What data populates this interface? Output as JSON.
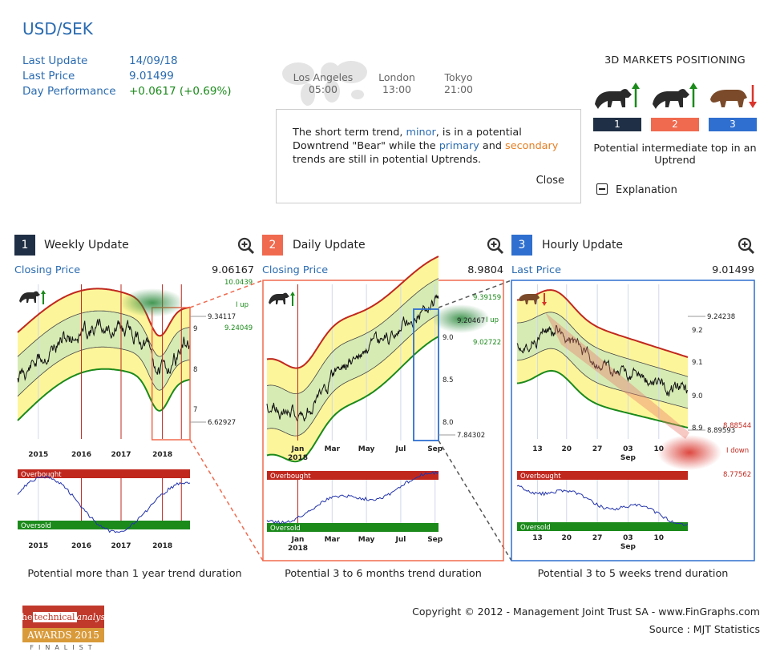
{
  "title": "USD/SEK",
  "info": [
    {
      "label": "Last Update",
      "value": "14/09/18",
      "tone": "blue"
    },
    {
      "label": "Last Price",
      "value": "9.01499",
      "tone": "blue"
    },
    {
      "label": "Day Performance",
      "value": "+0.0617 (+0.69%)",
      "tone": "green"
    }
  ],
  "cities": [
    {
      "name": "Los Angeles",
      "time": "05:00"
    },
    {
      "name": "London",
      "time": "13:00"
    },
    {
      "name": "Tokyo",
      "time": "21:00"
    }
  ],
  "popup": {
    "t1": "The short term trend, ",
    "minor": "minor",
    "t2": ", is in a potential Downtrend \"Bear\" while the ",
    "primary": "primary",
    "t3": " and ",
    "secondary": "secondary",
    "t4": " trends are still in potential Uptrends.",
    "close": "Close"
  },
  "positioning": {
    "title": "3D MARKETS POSITIONING",
    "boxes": [
      {
        "label": "1",
        "color": "#1f2f45",
        "animal": "bull",
        "arrow": "up"
      },
      {
        "label": "2",
        "color": "#f06a4f",
        "animal": "bull",
        "arrow": "up"
      },
      {
        "label": "3",
        "color": "#2f6fcf",
        "animal": "bear",
        "arrow": "down"
      }
    ],
    "description": "Potential intermediate top in an Uptrend",
    "explanation": "Explanation"
  },
  "panels": [
    {
      "num": "1",
      "num_color": "#1f2f45",
      "title": "Weekly Update",
      "price_label": "Closing Price",
      "price_value": "9.06167",
      "duration": "Potential more than 1 year trend duration",
      "frame_color": "#f06a4f",
      "chart_data": {
        "type": "line",
        "x_ticks": [
          "2015",
          "2016",
          "2017",
          "2018"
        ],
        "y_ticks": [
          "9",
          "8",
          "7"
        ],
        "levels": [
          "10.0439",
          "9.34117",
          "9.24049",
          "6.62927"
        ],
        "trend_label": "I up",
        "oscillator_top": "Overbought",
        "oscillator_bottom": "Oversold"
      }
    },
    {
      "num": "2",
      "num_color": "#f06a4f",
      "title": "Daily Update",
      "price_label": "Closing Price",
      "price_value": "8.9804",
      "duration": "Potential 3 to 6 months trend duration",
      "frame_color": "#2f6fcf",
      "chart_data": {
        "type": "line",
        "x_ticks": [
          "Jan",
          "Mar",
          "May",
          "Jul",
          "Sep"
        ],
        "x_year": "2018",
        "y_ticks": [
          "9.0",
          "8.5",
          "8.0"
        ],
        "levels": [
          "9.39159",
          "9.20467",
          "9.02722",
          "7.84302"
        ],
        "trend_label": "I up",
        "oscillator_top": "Overbought",
        "oscillator_bottom": "Oversold"
      }
    },
    {
      "num": "3",
      "num_color": "#2f6fcf",
      "title": "Hourly Update",
      "price_label": "Last Price",
      "price_value": "9.01499",
      "duration": "Potential 3 to 5 weeks trend duration",
      "frame_color": "#2f6fcf",
      "chart_data": {
        "type": "line",
        "x_ticks": [
          "13",
          "20",
          "27",
          "03",
          "10"
        ],
        "x_month": "Sep",
        "y_ticks": [
          "9.2",
          "9.1",
          "9.0",
          "8.9"
        ],
        "levels": [
          "9.24238",
          "8.88544",
          "8.89593",
          "8.77562"
        ],
        "trend_label": "I down",
        "oscillator_top": "Overbought",
        "oscillator_bottom": "Oversold"
      }
    }
  ],
  "copyright": "Copyright © 2012 - Management Joint Trust SA - www.FinGraphs.com",
  "source": "Source : MJT Statistics",
  "award": {
    "l1a": "the ",
    "l1b": "technical",
    "l1c": "analyst",
    "l2": "AWARDS 2015",
    "l3": "FINALIST"
  }
}
